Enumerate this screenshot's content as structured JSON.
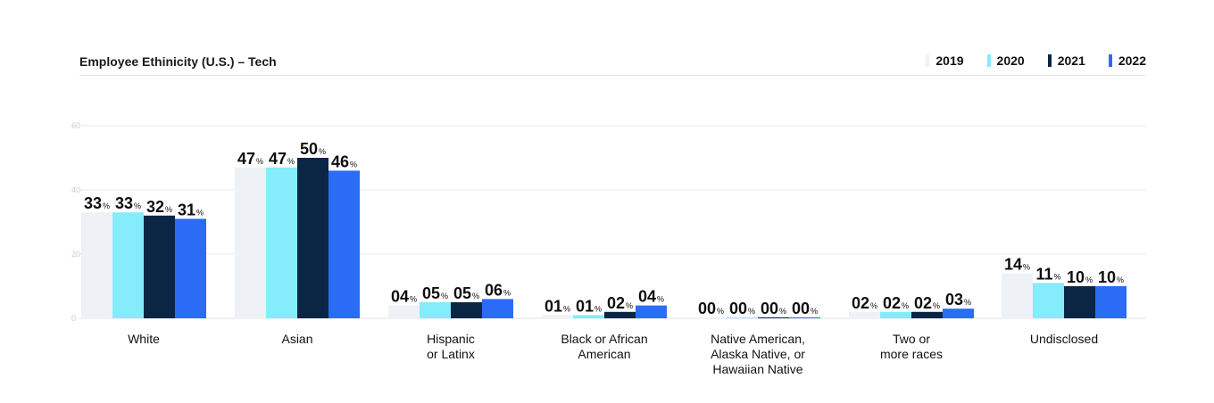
{
  "chart_data": {
    "type": "bar",
    "title": "Employee Ethinicity (U.S.) – Tech",
    "categories": [
      "White",
      "Asian",
      "Hispanic\nor Latinx",
      "Black or African\nAmerican",
      "Native American,\nAlaska Native, or\nHawaiian Native",
      "Two or\nmore races",
      "Undisclosed"
    ],
    "series": [
      {
        "name": "2019",
        "color": "#eef1f5",
        "values": [
          33,
          47,
          4,
          1,
          0,
          2,
          14
        ],
        "labels": [
          "33",
          "47",
          "04",
          "01",
          "00",
          "02",
          "14"
        ]
      },
      {
        "name": "2020",
        "color": "#84ecfa",
        "values": [
          33,
          47,
          5,
          1,
          0,
          2,
          11
        ],
        "labels": [
          "33",
          "47",
          "05",
          "01",
          "00",
          "02",
          "11"
        ]
      },
      {
        "name": "2021",
        "color": "#0b2545",
        "values": [
          32,
          50,
          5,
          2,
          0,
          2,
          10
        ],
        "labels": [
          "32",
          "50",
          "05",
          "02",
          "00",
          "02",
          "10"
        ]
      },
      {
        "name": "2022",
        "color": "#2b6cf6",
        "values": [
          31,
          46,
          6,
          4,
          0,
          3,
          10
        ],
        "labels": [
          "31",
          "46",
          "06",
          "04",
          "00",
          "03",
          "10"
        ]
      }
    ],
    "value_suffix": "%",
    "yticks": [
      "0",
      "20",
      "40",
      "60"
    ],
    "ylim": [
      0,
      60
    ],
    "grid": true,
    "legend_position": "top-right"
  }
}
